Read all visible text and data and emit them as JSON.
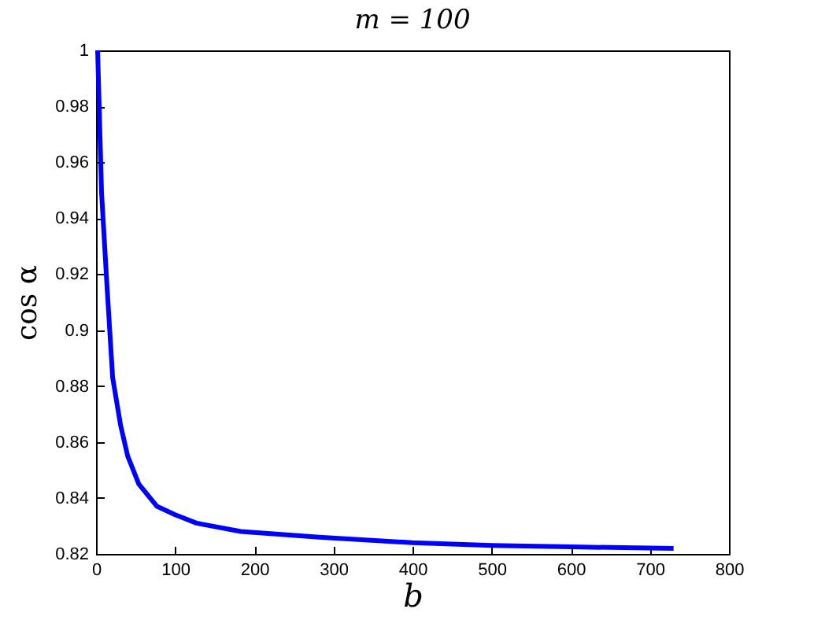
{
  "chart_data": {
    "type": "line",
    "title": "m = 100",
    "xlabel": "b",
    "ylabel": "cos α",
    "x": [
      2,
      7,
      14,
      21,
      31,
      40,
      54,
      77,
      100,
      127,
      183,
      282,
      400,
      500,
      600,
      730
    ],
    "series": [
      {
        "color": "#0000ff",
        "values": [
          1,
          0.949,
          0.915,
          0.883,
          0.866,
          0.855,
          0.845,
          0.837,
          0.834,
          0.831,
          0.828,
          0.826,
          0.824,
          0.823,
          0.8225,
          0.822
        ]
      }
    ],
    "xlim": [
      0,
      800
    ],
    "xticks": [
      0,
      100,
      200,
      300,
      400,
      500,
      600,
      700,
      800
    ],
    "ylim": [
      0.82,
      1
    ],
    "yticks": [
      0.82,
      0.84,
      0.86,
      0.88,
      0.9,
      0.92,
      0.94,
      0.96,
      0.98,
      1
    ],
    "grid": false,
    "marker": "none",
    "line_style": "solid"
  }
}
